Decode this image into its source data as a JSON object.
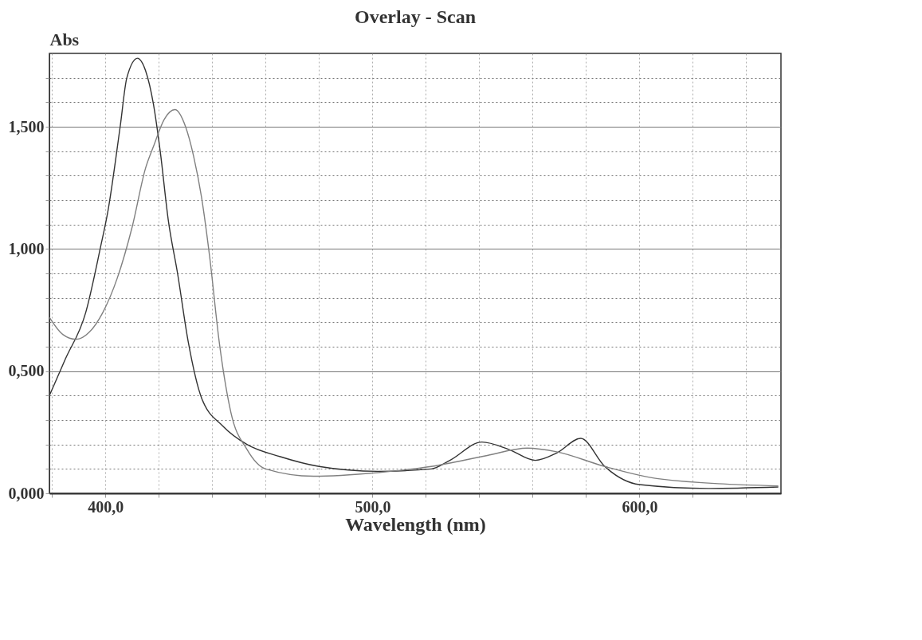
{
  "chart_data": {
    "type": "line",
    "title": "Overlay - Scan",
    "xlabel": "Wavelength (nm)",
    "ylabel": "Abs",
    "xlim": [
      379,
      653
    ],
    "xticks": [
      {
        "value": 380,
        "label": null
      },
      {
        "value": 400,
        "label": "400,0"
      },
      {
        "value": 420,
        "label": null
      },
      {
        "value": 440,
        "label": null
      },
      {
        "value": 460,
        "label": null
      },
      {
        "value": 480,
        "label": null
      },
      {
        "value": 500,
        "label": "500,0"
      },
      {
        "value": 520,
        "label": null
      },
      {
        "value": 540,
        "label": null
      },
      {
        "value": 560,
        "label": null
      },
      {
        "value": 580,
        "label": null
      },
      {
        "value": 600,
        "label": "600,0"
      },
      {
        "value": 620,
        "label": null
      },
      {
        "value": 640,
        "label": null
      }
    ],
    "ylim": [
      0,
      1.8
    ],
    "yticks": [
      {
        "value": 0,
        "label": "0,000"
      },
      {
        "value": 0.1,
        "label": null
      },
      {
        "value": 0.2,
        "label": null
      },
      {
        "value": 0.3,
        "label": null
      },
      {
        "value": 0.4,
        "label": null
      },
      {
        "value": 0.5,
        "label": "0,500"
      },
      {
        "value": 0.6,
        "label": null
      },
      {
        "value": 0.7,
        "label": null
      },
      {
        "value": 0.8,
        "label": null
      },
      {
        "value": 0.9,
        "label": null
      },
      {
        "value": 1,
        "label": "1,000"
      },
      {
        "value": 1.1,
        "label": null
      },
      {
        "value": 1.2,
        "label": null
      },
      {
        "value": 1.3,
        "label": null
      },
      {
        "value": 1.4,
        "label": null
      },
      {
        "value": 1.5,
        "label": "1,500"
      },
      {
        "value": 1.6,
        "label": null
      },
      {
        "value": 1.7,
        "label": null
      }
    ],
    "grid": true,
    "marker": "none",
    "line_style": "solid",
    "series": [
      {
        "color": "#333333",
        "x": [
          379,
          385,
          392.6,
          398,
          401,
          405.5,
          408,
          412,
          415,
          418,
          420.5,
          423.5,
          427,
          431,
          436,
          444,
          453,
          465.5,
          480,
          502,
          522,
          529,
          541,
          551,
          561,
          569,
          578,
          587,
          600,
          626,
          652
        ],
        "values": [
          0.4,
          0.55,
          0.74,
          1.0,
          1.16,
          1.5,
          1.7,
          1.78,
          1.73,
          1.59,
          1.4,
          1.12,
          0.9,
          0.62,
          0.39,
          0.275,
          0.2,
          0.15,
          0.11,
          0.09,
          0.1,
          0.135,
          0.21,
          0.18,
          0.135,
          0.165,
          0.225,
          0.11,
          0.036,
          0.02,
          0.026
        ]
      },
      {
        "color": "#808080",
        "x": [
          379,
          384,
          389,
          394,
          399,
          404.4,
          410,
          415,
          418,
          422,
          426,
          430,
          433,
          436,
          439,
          442.6,
          447,
          453,
          460,
          478,
          502,
          522,
          543,
          558,
          569,
          587,
          607,
          652
        ],
        "values": [
          0.72,
          0.65,
          0.63,
          0.66,
          0.74,
          0.88,
          1.09,
          1.33,
          1.42,
          1.53,
          1.57,
          1.5,
          1.38,
          1.21,
          0.97,
          0.62,
          0.33,
          0.18,
          0.1,
          0.07,
          0.085,
          0.11,
          0.155,
          0.185,
          0.17,
          0.11,
          0.06,
          0.03
        ]
      }
    ]
  }
}
